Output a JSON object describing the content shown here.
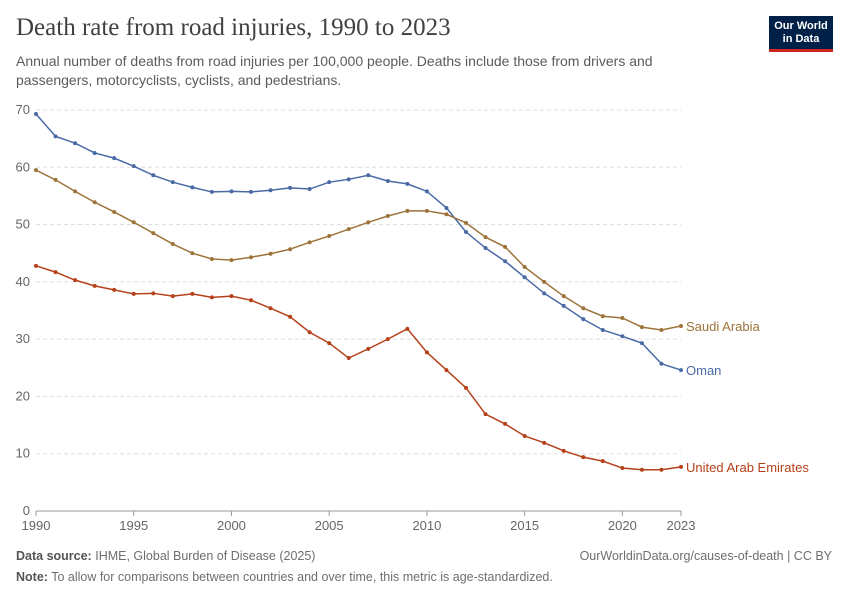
{
  "chart_data": {
    "type": "line",
    "title": "Death rate from road injuries, 1990 to 2023",
    "subtitle": "Annual number of deaths from road injuries per 100,000 people. Deaths include those from drivers and passengers, motorcyclists, cyclists, and pedestrians.",
    "logo": [
      "Our World",
      "in Data"
    ],
    "source_label": "Data source:",
    "source": "IHME, Global Burden of Disease (2025)",
    "url": "OurWorldinData.org/causes-of-death | CC BY",
    "note_label": "Note:",
    "note": "To allow for comparisons between countries and over time, this metric is age-standardized.",
    "x": [
      1990,
      1991,
      1992,
      1993,
      1994,
      1995,
      1996,
      1997,
      1998,
      1999,
      2000,
      2001,
      2002,
      2003,
      2004,
      2005,
      2006,
      2007,
      2008,
      2009,
      2010,
      2011,
      2012,
      2013,
      2014,
      2015,
      2016,
      2017,
      2018,
      2019,
      2020,
      2021,
      2022,
      2023
    ],
    "xlim": [
      1990,
      2023
    ],
    "xticks": [
      1990,
      1995,
      2000,
      2005,
      2010,
      2015,
      2020,
      2023
    ],
    "ylim": [
      0,
      70
    ],
    "yticks": [
      0,
      10,
      20,
      30,
      40,
      50,
      60,
      70
    ],
    "grid": true,
    "series": [
      {
        "name": "Oman",
        "color": "#4a6aa5",
        "values": [
          69.3,
          65.4,
          64.2,
          62.5,
          61.6,
          60.2,
          58.6,
          57.4,
          56.5,
          55.7,
          55.8,
          55.7,
          56.0,
          56.4,
          56.2,
          57.4,
          57.9,
          58.6,
          57.6,
          57.1,
          55.8,
          52.9,
          48.7,
          45.9,
          43.6,
          40.8,
          38.0,
          35.8,
          33.5,
          31.6,
          30.5,
          29.3,
          25.7,
          24.6
        ]
      },
      {
        "name": "Saudi Arabia",
        "color": "#9d7339",
        "values": [
          59.5,
          57.8,
          55.8,
          53.9,
          52.2,
          50.4,
          48.5,
          46.6,
          45.0,
          44.0,
          43.8,
          44.3,
          44.9,
          45.7,
          46.9,
          48.0,
          49.2,
          50.4,
          51.5,
          52.4,
          52.4,
          51.8,
          50.3,
          47.8,
          46.1,
          42.6,
          40.0,
          37.5,
          35.4,
          34.0,
          33.7,
          32.1,
          31.6,
          32.3
        ]
      },
      {
        "name": "United Arab Emirates",
        "color": "#b6401a",
        "values": [
          42.8,
          41.7,
          40.3,
          39.3,
          38.6,
          37.9,
          38.0,
          37.5,
          37.9,
          37.3,
          37.5,
          36.8,
          35.4,
          33.9,
          31.2,
          29.3,
          26.7,
          28.3,
          30.0,
          31.8,
          27.7,
          24.6,
          21.5,
          16.9,
          15.2,
          13.1,
          11.9,
          10.5,
          9.4,
          8.7,
          7.5,
          7.2,
          7.2,
          7.7
        ]
      }
    ]
  }
}
